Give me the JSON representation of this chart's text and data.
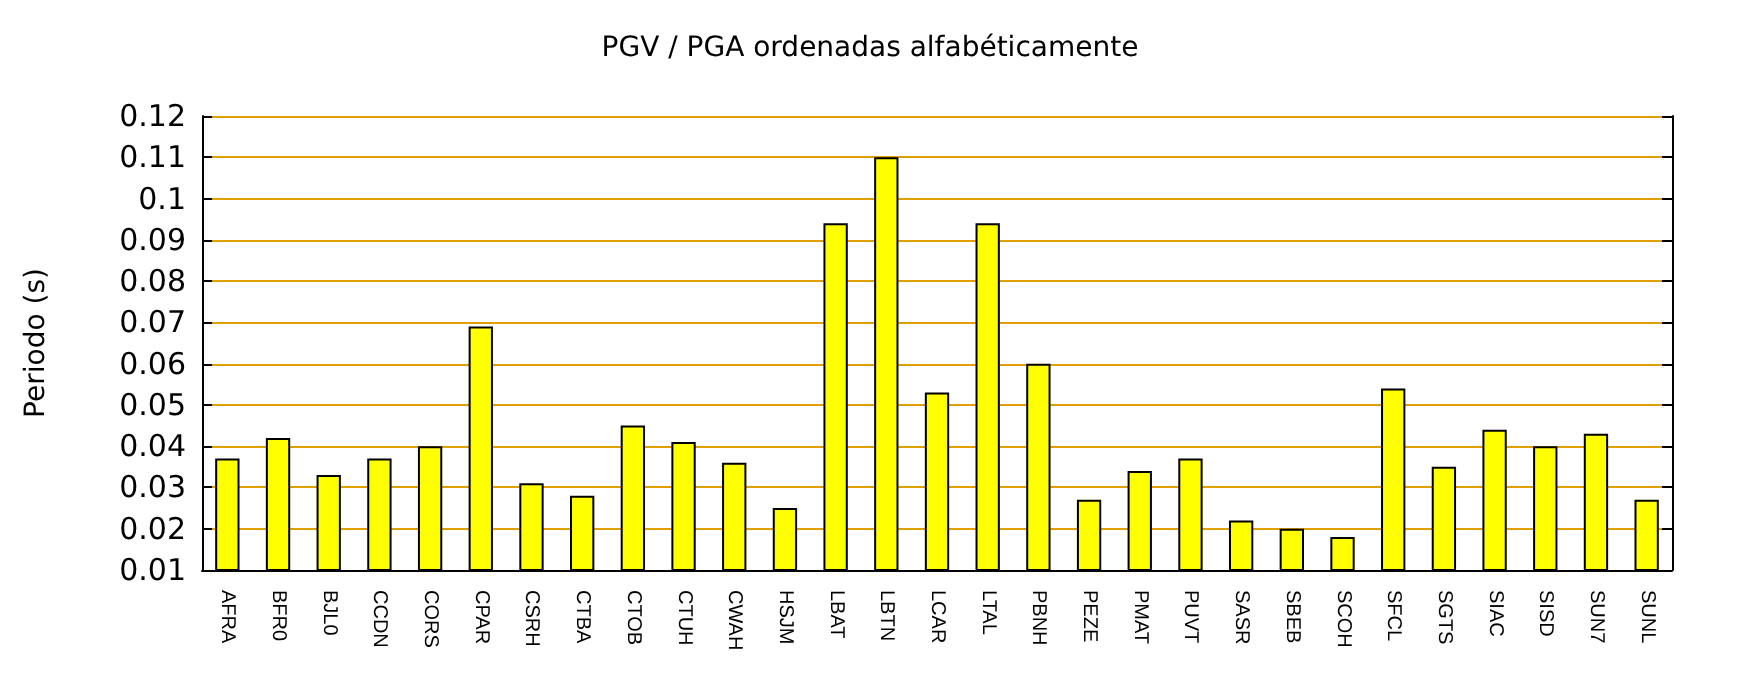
{
  "chart_data": {
    "type": "bar",
    "title": "PGV / PGA ordenadas alfabéticamente",
    "ylabel": "Periodo (s)",
    "categories": [
      "AFRA",
      "BFR0",
      "BJL0",
      "CCDN",
      "CORS",
      "CPAR",
      "CSRH",
      "CTBA",
      "CTOB",
      "CTUH",
      "CWAH",
      "HSJM",
      "LBAT",
      "LBTN",
      "LCAR",
      "LTAL",
      "PBNH",
      "PEZE",
      "PMAT",
      "PUVT",
      "SASR",
      "SBEB",
      "SCOH",
      "SFCL",
      "SGTS",
      "SIAC",
      "SISD",
      "SUN7",
      "SUNL"
    ],
    "values": [
      0.037,
      0.042,
      0.033,
      0.037,
      0.04,
      0.069,
      0.031,
      0.028,
      0.045,
      0.041,
      0.036,
      0.025,
      0.094,
      0.11,
      0.053,
      0.094,
      0.06,
      0.027,
      0.034,
      0.037,
      0.022,
      0.02,
      0.018,
      0.054,
      0.035,
      0.044,
      0.04,
      0.043,
      0.027
    ],
    "color": "#ffff00",
    "ylim": [
      0.01,
      0.12
    ],
    "yticks": [
      0.01,
      0.02,
      0.03,
      0.04,
      0.05,
      0.06,
      0.07,
      0.08,
      0.09,
      0.1,
      0.11,
      0.12
    ],
    "grid": "y"
  }
}
